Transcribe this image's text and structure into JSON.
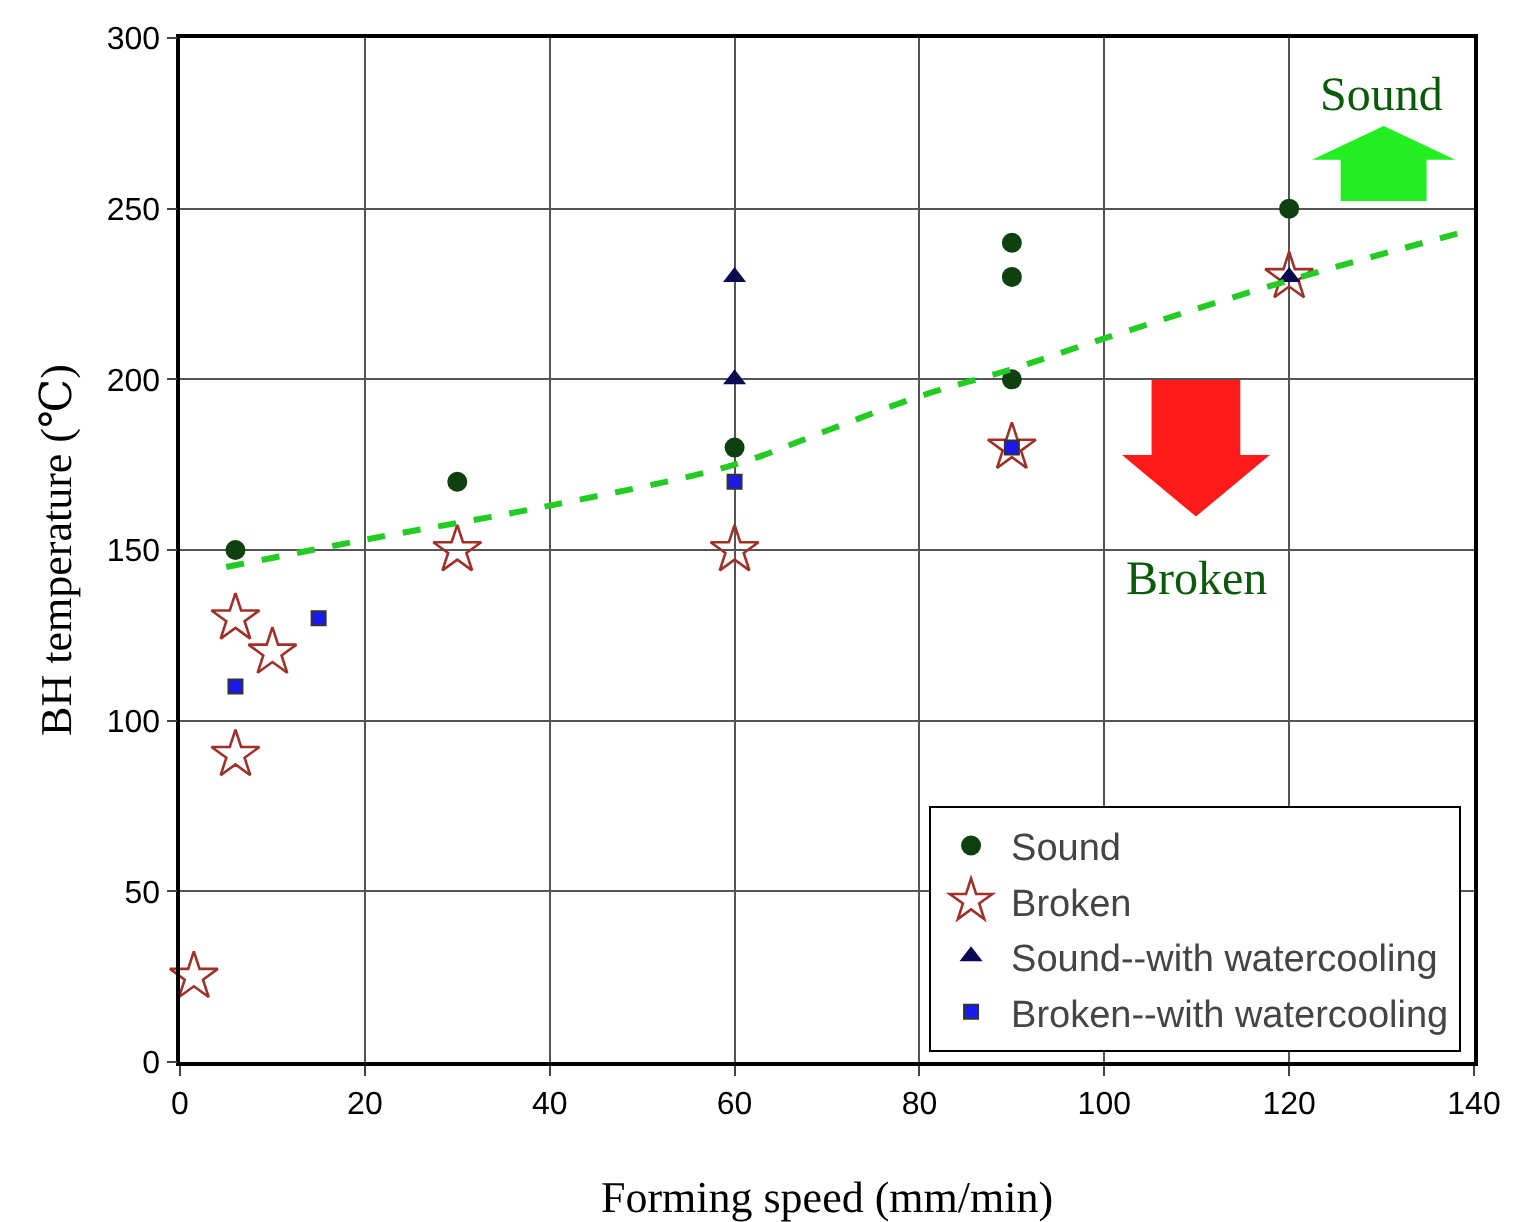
{
  "chart_data": {
    "type": "scatter",
    "xlabel": "Forming speed (mm/min)",
    "ylabel": "BH temperature (℃)",
    "xlim": [
      0,
      140
    ],
    "xticks": [
      0,
      20,
      40,
      60,
      80,
      100,
      120,
      140
    ],
    "ylim": [
      0,
      300
    ],
    "yticks": [
      0,
      50,
      100,
      150,
      200,
      250,
      300
    ],
    "grid": true,
    "legend": "bottom right",
    "annotations": [
      "Sound",
      "Broken"
    ],
    "series": [
      {
        "name": "Sound",
        "marker": "circle",
        "color": "#0f4010",
        "x": [
          6,
          30,
          60,
          90,
          90,
          90,
          120
        ],
        "values": [
          150,
          170,
          180,
          240,
          230,
          200,
          250
        ]
      },
      {
        "name": "Broken",
        "marker": "star",
        "color": "#a0302a",
        "x": [
          1.5,
          6,
          6,
          10,
          30,
          60,
          90,
          120
        ],
        "values": [
          25,
          130,
          90,
          120,
          150,
          150,
          180,
          230
        ]
      },
      {
        "name": "Sound--with watercooling",
        "marker": "triangle",
        "color": "#0a0a50",
        "x": [
          60,
          60,
          120
        ],
        "values": [
          230,
          200,
          230
        ]
      },
      {
        "name": "Broken--with watercooling",
        "marker": "square",
        "color": "#1a1aee",
        "x": [
          6,
          15,
          60,
          90
        ],
        "values": [
          110,
          130,
          170,
          180
        ]
      },
      {
        "type": "line",
        "marker": "none",
        "line_style": "dashed",
        "color": "#22cc22",
        "x": [
          5,
          20,
          40,
          60,
          70,
          80,
          90,
          100,
          120,
          140
        ],
        "values": [
          145,
          153,
          163,
          175,
          185,
          195,
          203,
          212,
          229,
          244
        ]
      }
    ]
  }
}
